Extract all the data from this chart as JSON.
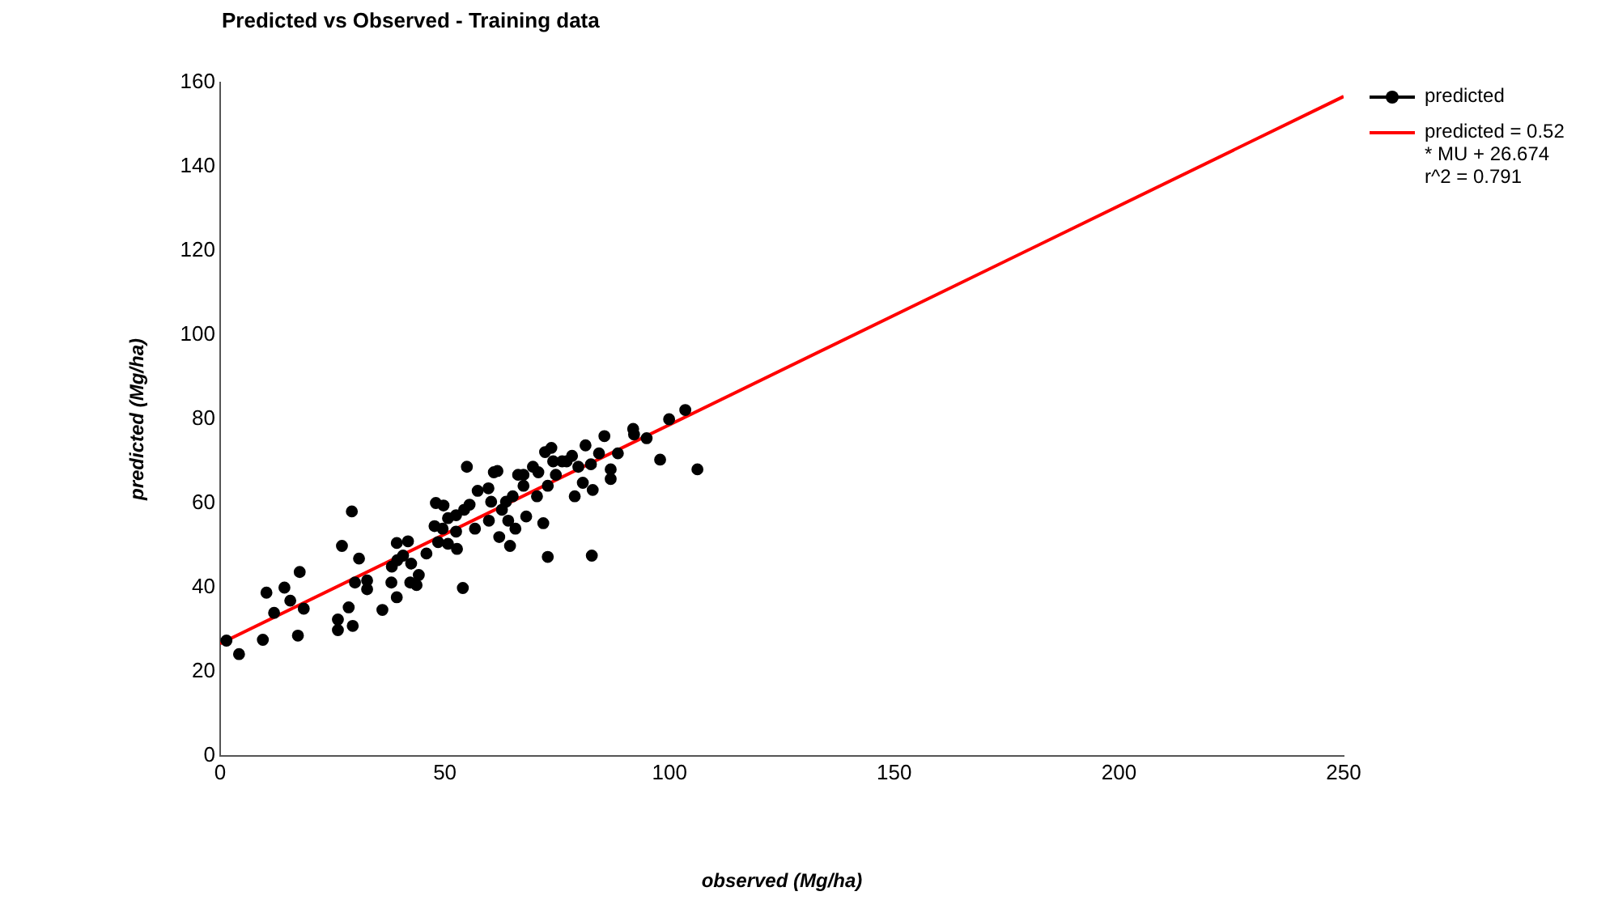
{
  "chart_data": {
    "type": "scatter",
    "title": "Predicted vs Observed - Training data",
    "xlabel": "observed (Mg/ha)",
    "ylabel": "predicted (Mg/ha)",
    "xlim": [
      0,
      250
    ],
    "xticks": [
      0,
      50,
      100,
      150,
      200,
      250
    ],
    "ylim": [
      0,
      160
    ],
    "yticks": [
      0,
      20,
      40,
      60,
      80,
      100,
      120,
      140,
      160
    ],
    "grid": false,
    "legend": "top right",
    "marker": "circle",
    "series": [
      {
        "name": "predicted",
        "color": "#000000",
        "x": [
          1.4,
          4.2,
          9.5,
          10.3,
          12,
          14.3,
          15.6,
          17.7,
          17.3,
          18.6,
          26.2,
          26.2,
          27.1,
          28.6,
          29.3,
          29.5,
          30.9,
          30,
          32.7,
          32.7,
          36.1,
          38.1,
          39.3,
          38.2,
          39.3,
          41.8,
          39.4,
          40.7,
          42.5,
          42.3,
          43.7,
          44.2,
          45.9,
          48,
          49.7,
          47.7,
          49.5,
          48.5,
          50.7,
          52.7,
          54,
          54.9,
          52.5,
          54.3,
          55.5,
          50.7,
          52.5,
          56.7,
          57.3,
          59.7,
          60.9,
          61.7,
          59.8,
          60.3,
          62.1,
          62.7,
          64.5,
          64.1,
          63.6,
          65.1,
          65.7,
          66.3,
          67.5,
          68.1,
          67.5,
          69.6,
          70.8,
          70.5,
          71.9,
          72.9,
          72.3,
          73.7,
          74.1,
          74.7,
          72.9,
          76.1,
          77.1,
          78.3,
          79.7,
          78.9,
          80.7,
          81.3,
          82.5,
          82.9,
          82.7,
          84.3,
          85.5,
          86.9,
          86.9,
          88.5,
          91.9,
          92.1,
          94.9,
          97.9,
          99.9,
          103.5,
          106.2
        ],
        "values": [
          27.4,
          24.2,
          27.6,
          38.8,
          34,
          40,
          36.9,
          43.7,
          28.6,
          35,
          32.4,
          29.9,
          49.9,
          35.3,
          58.1,
          30.9,
          46.9,
          41.2,
          41.7,
          39.6,
          34.7,
          41.2,
          37.7,
          45,
          50.6,
          51,
          46.5,
          47.6,
          45.7,
          41.2,
          40.6,
          43,
          48.1,
          60.1,
          59.5,
          54.6,
          54,
          50.8,
          50.4,
          49.2,
          39.9,
          68.7,
          57.2,
          58.5,
          59.7,
          56.5,
          53.3,
          54,
          63,
          63.6,
          67.4,
          67.7,
          55.9,
          60.4,
          52,
          58.5,
          49.9,
          55.9,
          60.4,
          61.7,
          54,
          66.8,
          64.2,
          56.9,
          66.8,
          68.7,
          67.4,
          61.7,
          55.3,
          47.3,
          72.2,
          73.2,
          70,
          66.8,
          64.2,
          70,
          70,
          71.3,
          68.7,
          61.7,
          64.9,
          73.8,
          69.3,
          63.2,
          47.6,
          71.9,
          76,
          68.1,
          65.8,
          71.9,
          77.7,
          76.4,
          75.5,
          70.4,
          80,
          82.2,
          68.1
        ]
      },
      {
        "name": "predicted = 0.52 * MU + 26.674 r^2 = 0.791",
        "type": "line",
        "color": "#ff0000",
        "x": [
          0,
          250
        ],
        "values": [
          26.7,
          156.7
        ],
        "marker": "none"
      }
    ]
  }
}
